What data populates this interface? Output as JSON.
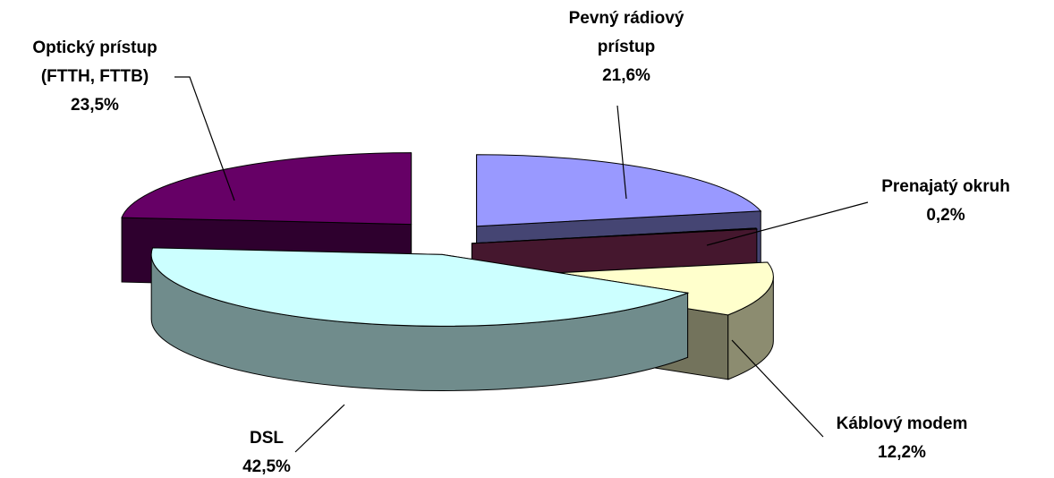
{
  "chart_data": {
    "type": "pie",
    "style": "3d-exploded",
    "title": "",
    "slices": [
      {
        "label_lines": [
          "Pevný rádiový",
          "prístup"
        ],
        "value_text": "21,6%",
        "value": 21.6,
        "color": "#9999FF"
      },
      {
        "label_lines": [
          "Prenajatý okruh"
        ],
        "value_text": "0,2%",
        "value": 0.2,
        "color": "#993366"
      },
      {
        "label_lines": [
          "Káblový modem"
        ],
        "value_text": "12,2%",
        "value": 12.2,
        "color": "#FFFFCC"
      },
      {
        "label_lines": [
          "DSL"
        ],
        "value_text": "42,5%",
        "value": 42.5,
        "color": "#CCFFFF"
      },
      {
        "label_lines": [
          "Optický prístup",
          "(FTTH, FTTB)"
        ],
        "value_text": "23,5%",
        "value": 23.5,
        "color": "#660066"
      }
    ],
    "legend": "none"
  }
}
